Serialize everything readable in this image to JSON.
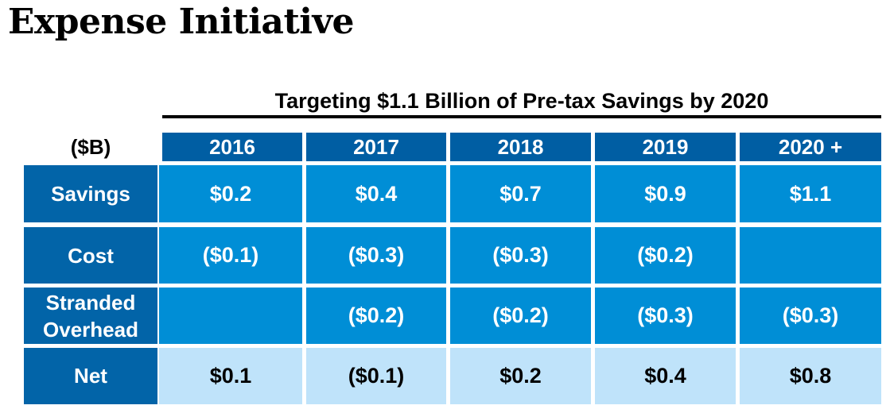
{
  "title": "Expense Initiative",
  "subtitle": "Targeting $1.1 Billion of Pre-tax Savings by 2020",
  "unit_label": "($B)",
  "columns": [
    "2016",
    "2017",
    "2018",
    "2019",
    "2020 +"
  ],
  "rows": [
    {
      "label": "Savings",
      "values": [
        "$0.2",
        "$0.4",
        "$0.7",
        "$0.9",
        "$1.1"
      ]
    },
    {
      "label": "Cost",
      "values": [
        "($0.1)",
        "($0.3)",
        "($0.3)",
        "($0.2)",
        ""
      ]
    },
    {
      "label": "Stranded Overhead",
      "values": [
        "",
        "($0.2)",
        "($0.2)",
        "($0.3)",
        "($0.3)"
      ]
    },
    {
      "label": "Net",
      "values": [
        "$0.1",
        "($0.1)",
        "$0.2",
        "$0.4",
        "$0.8"
      ]
    }
  ],
  "colors": {
    "header": "#005ea3",
    "row_header": "#0264a8",
    "data": "#008ed6",
    "net_data": "#bfe3fa"
  }
}
